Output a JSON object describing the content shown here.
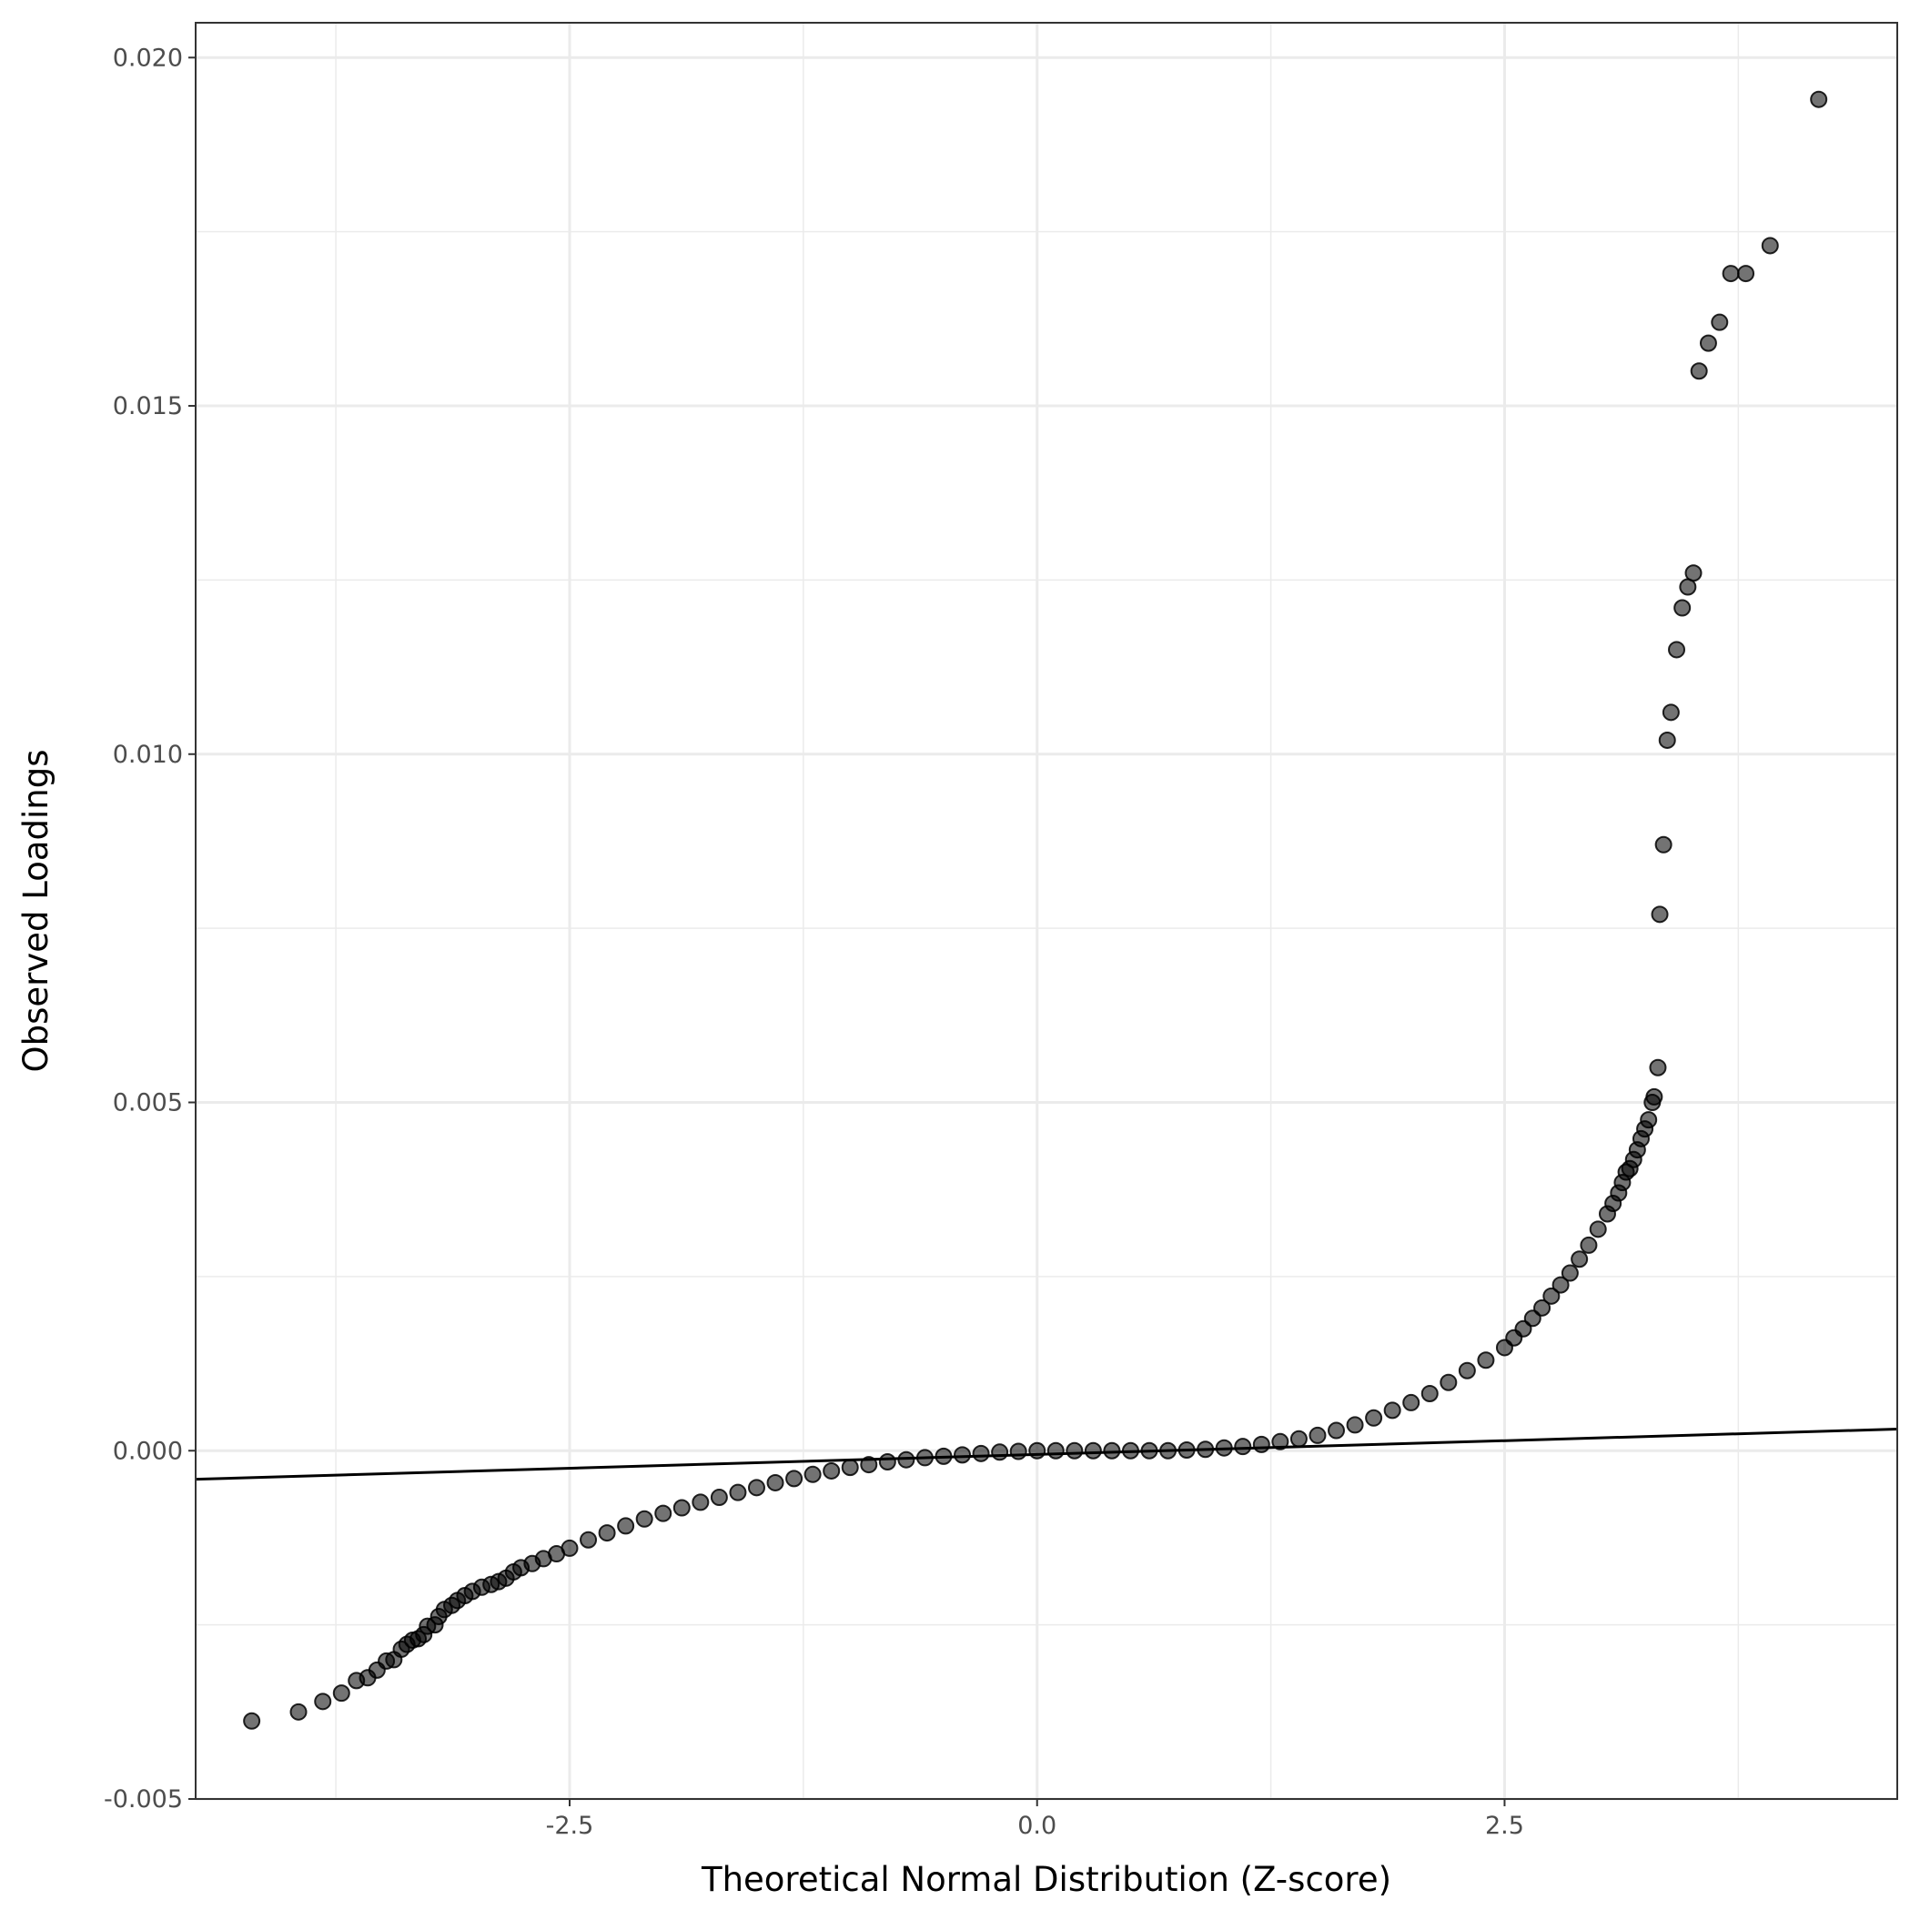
{
  "chart_data": {
    "type": "scatter",
    "title": "",
    "xlabel": "Theoretical Normal Distribution (Z-score)",
    "ylabel": "Observed Loadings",
    "xlim": [
      -4.5,
      4.6
    ],
    "ylim": [
      -0.005,
      0.0205
    ],
    "x_ticks": [
      -2.5,
      0.0,
      2.5
    ],
    "x_tick_labels": [
      "-2.5",
      "0.0",
      "2.5"
    ],
    "x_minor_ticks": [
      -3.75,
      -1.25,
      1.25,
      3.75
    ],
    "y_ticks": [
      -0.005,
      0.0,
      0.005,
      0.01,
      0.015,
      0.02
    ],
    "y_tick_labels": [
      "-0.005",
      "0.000",
      "0.005",
      "0.010",
      "0.015",
      "0.020"
    ],
    "y_minor_ticks": [
      -0.0025,
      0.0025,
      0.0075,
      0.0125,
      0.0175
    ],
    "grid": true,
    "legend": "none",
    "reference_line": {
      "x": [
        -4.5,
        4.6
      ],
      "y": [
        -0.00041,
        0.00031
      ]
    },
    "series": [
      {
        "color": "#000000",
        "opacity": 0.55,
        "points": [
          [
            -4.2,
            -0.00388
          ],
          [
            -3.95,
            -0.00375
          ],
          [
            -3.82,
            -0.0036
          ],
          [
            -3.72,
            -0.00348
          ],
          [
            -3.64,
            -0.0033
          ],
          [
            -3.58,
            -0.00326
          ],
          [
            -3.53,
            -0.00315
          ],
          [
            -3.48,
            -0.00302
          ],
          [
            -3.44,
            -0.003
          ],
          [
            -3.4,
            -0.00285
          ],
          [
            -3.37,
            -0.00278
          ],
          [
            -3.34,
            -0.00272
          ],
          [
            -3.31,
            -0.0027
          ],
          [
            -3.28,
            -0.00264
          ],
          [
            -3.26,
            -0.00252
          ],
          [
            -3.22,
            -0.0025
          ],
          [
            -3.2,
            -0.00238
          ],
          [
            -3.17,
            -0.00228
          ],
          [
            -3.13,
            -0.00222
          ],
          [
            -3.1,
            -0.00215
          ],
          [
            -3.06,
            -0.00208
          ],
          [
            -3.02,
            -0.00202
          ],
          [
            -2.97,
            -0.00196
          ],
          [
            -2.92,
            -0.00192
          ],
          [
            -2.88,
            -0.00188
          ],
          [
            -2.84,
            -0.00183
          ],
          [
            -2.8,
            -0.00174
          ],
          [
            -2.76,
            -0.00168
          ],
          [
            -2.7,
            -0.00162
          ],
          [
            -2.64,
            -0.00155
          ],
          [
            -2.57,
            -0.00148
          ],
          [
            -2.5,
            -0.0014
          ],
          [
            -2.4,
            -0.00128
          ],
          [
            -2.3,
            -0.00118
          ],
          [
            -2.2,
            -0.00108
          ],
          [
            -2.1,
            -0.00098
          ],
          [
            -2.0,
            -0.0009
          ],
          [
            -1.9,
            -0.00082
          ],
          [
            -1.8,
            -0.00074
          ],
          [
            -1.7,
            -0.00067
          ],
          [
            -1.6,
            -0.0006
          ],
          [
            -1.5,
            -0.00053
          ],
          [
            -1.4,
            -0.00046
          ],
          [
            -1.3,
            -0.0004
          ],
          [
            -1.2,
            -0.00034
          ],
          [
            -1.1,
            -0.00029
          ],
          [
            -1.0,
            -0.00024
          ],
          [
            -0.9,
            -0.0002
          ],
          [
            -0.8,
            -0.00016
          ],
          [
            -0.7,
            -0.00013
          ],
          [
            -0.6,
            -0.0001
          ],
          [
            -0.5,
            -8e-05
          ],
          [
            -0.4,
            -6e-05
          ],
          [
            -0.3,
            -4e-05
          ],
          [
            -0.2,
            -2e-05
          ],
          [
            -0.1,
            -1e-05
          ],
          [
            0.0,
            0.0
          ],
          [
            0.1,
            0.0
          ],
          [
            0.2,
            0.0
          ],
          [
            0.3,
            0.0
          ],
          [
            0.4,
            0.0
          ],
          [
            0.5,
            0.0
          ],
          [
            0.6,
            0.0
          ],
          [
            0.7,
            0.0
          ],
          [
            0.8,
            1e-05
          ],
          [
            0.9,
            2e-05
          ],
          [
            1.0,
            4e-05
          ],
          [
            1.1,
            6e-05
          ],
          [
            1.2,
            9e-05
          ],
          [
            1.3,
            0.00013
          ],
          [
            1.4,
            0.00017
          ],
          [
            1.5,
            0.00022
          ],
          [
            1.6,
            0.00029
          ],
          [
            1.7,
            0.00037
          ],
          [
            1.8,
            0.00047
          ],
          [
            1.9,
            0.00058
          ],
          [
            2.0,
            0.00069
          ],
          [
            2.1,
            0.00082
          ],
          [
            2.2,
            0.00098
          ],
          [
            2.3,
            0.00115
          ],
          [
            2.4,
            0.0013
          ],
          [
            2.5,
            0.00148
          ],
          [
            2.55,
            0.00162
          ],
          [
            2.6,
            0.00175
          ],
          [
            2.65,
            0.0019
          ],
          [
            2.7,
            0.00205
          ],
          [
            2.75,
            0.00222
          ],
          [
            2.8,
            0.00238
          ],
          [
            2.85,
            0.00255
          ],
          [
            2.9,
            0.00275
          ],
          [
            2.95,
            0.00295
          ],
          [
            3.0,
            0.00318
          ],
          [
            3.05,
            0.0034
          ],
          [
            3.08,
            0.00355
          ],
          [
            3.11,
            0.0037
          ],
          [
            3.13,
            0.00385
          ],
          [
            3.15,
            0.004
          ],
          [
            3.17,
            0.00405
          ],
          [
            3.19,
            0.00418
          ],
          [
            3.21,
            0.00432
          ],
          [
            3.23,
            0.00448
          ],
          [
            3.25,
            0.00462
          ],
          [
            3.27,
            0.00475
          ],
          [
            3.29,
            0.005
          ],
          [
            3.3,
            0.00508
          ],
          [
            3.32,
            0.0055
          ],
          [
            3.33,
            0.0077
          ],
          [
            3.35,
            0.0087
          ],
          [
            3.37,
            0.0102
          ],
          [
            3.39,
            0.0106
          ],
          [
            3.42,
            0.0115
          ],
          [
            3.45,
            0.0121
          ],
          [
            3.48,
            0.0124
          ],
          [
            3.51,
            0.0126
          ],
          [
            3.54,
            0.0155
          ],
          [
            3.59,
            0.0159
          ],
          [
            3.65,
            0.0162
          ],
          [
            3.71,
            0.0169
          ],
          [
            3.79,
            0.0169
          ],
          [
            3.92,
            0.0173
          ],
          [
            4.18,
            0.0194
          ]
        ]
      }
    ]
  }
}
